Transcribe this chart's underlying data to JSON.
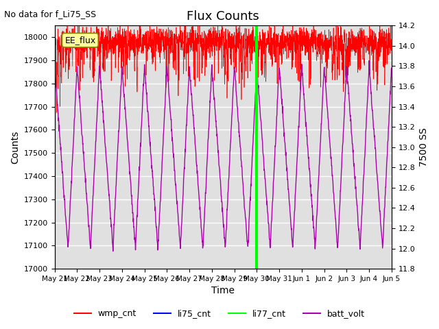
{
  "title": "Flux Counts",
  "top_left_text": "No data for f_Li75_SS",
  "annotation_text": "EE_flux",
  "xlabel": "Time",
  "ylabel_left": "Counts",
  "ylabel_right": "7500 SS",
  "ylim_left": [
    17000,
    18050
  ],
  "ylim_right": [
    11.8,
    14.2
  ],
  "background_color": "#ffffff",
  "plot_bg_color": "#e0e0e0",
  "x_tick_labels": [
    "May 21",
    "May 22",
    "May 23",
    "May 24",
    "May 25",
    "May 26",
    "May 27",
    "May 28",
    "May 29",
    "May 30",
    "May 31",
    "Jun 1",
    "Jun 2",
    "Jun 3",
    "Jun 4",
    "Jun 5"
  ],
  "x_tick_positions": [
    0,
    1,
    2,
    3,
    4,
    5,
    6,
    7,
    8,
    9,
    10,
    11,
    12,
    13,
    14,
    15
  ],
  "wmp_color": "#ff0000",
  "li75_color": "#0000ff",
  "li77_color": "#00ff00",
  "batt_color": "#aa00aa",
  "legend_labels": [
    "wmp_cnt",
    "li75_cnt",
    "li77_cnt",
    "batt_volt"
  ],
  "left_ticks": [
    17000,
    17100,
    17200,
    17300,
    17400,
    17500,
    17600,
    17700,
    17800,
    17900,
    18000
  ],
  "right_ticks": [
    11.8,
    12.0,
    12.2,
    12.4,
    12.6,
    12.8,
    13.0,
    13.2,
    13.4,
    13.6,
    13.8,
    14.0,
    14.2
  ],
  "n_days": 15,
  "li77_day": 9.0,
  "seed": 42
}
